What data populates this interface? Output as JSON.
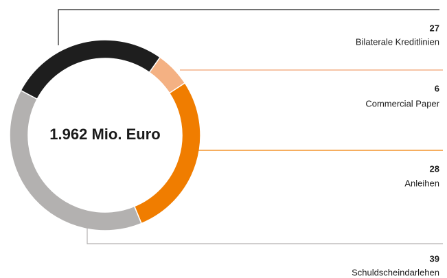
{
  "chart_data": {
    "type": "donut",
    "center_label": "1.962 Mio. Euro",
    "categories": [
      "Bilaterale Kreditlinien",
      "Commercial Paper",
      "Anleihen",
      "Schuldscheindarlehen"
    ],
    "values": [
      27,
      6,
      28,
      39
    ],
    "colors": [
      "#1e1e1e",
      "#f4b183",
      "#f07d00",
      "#b3b1b0"
    ]
  }
}
